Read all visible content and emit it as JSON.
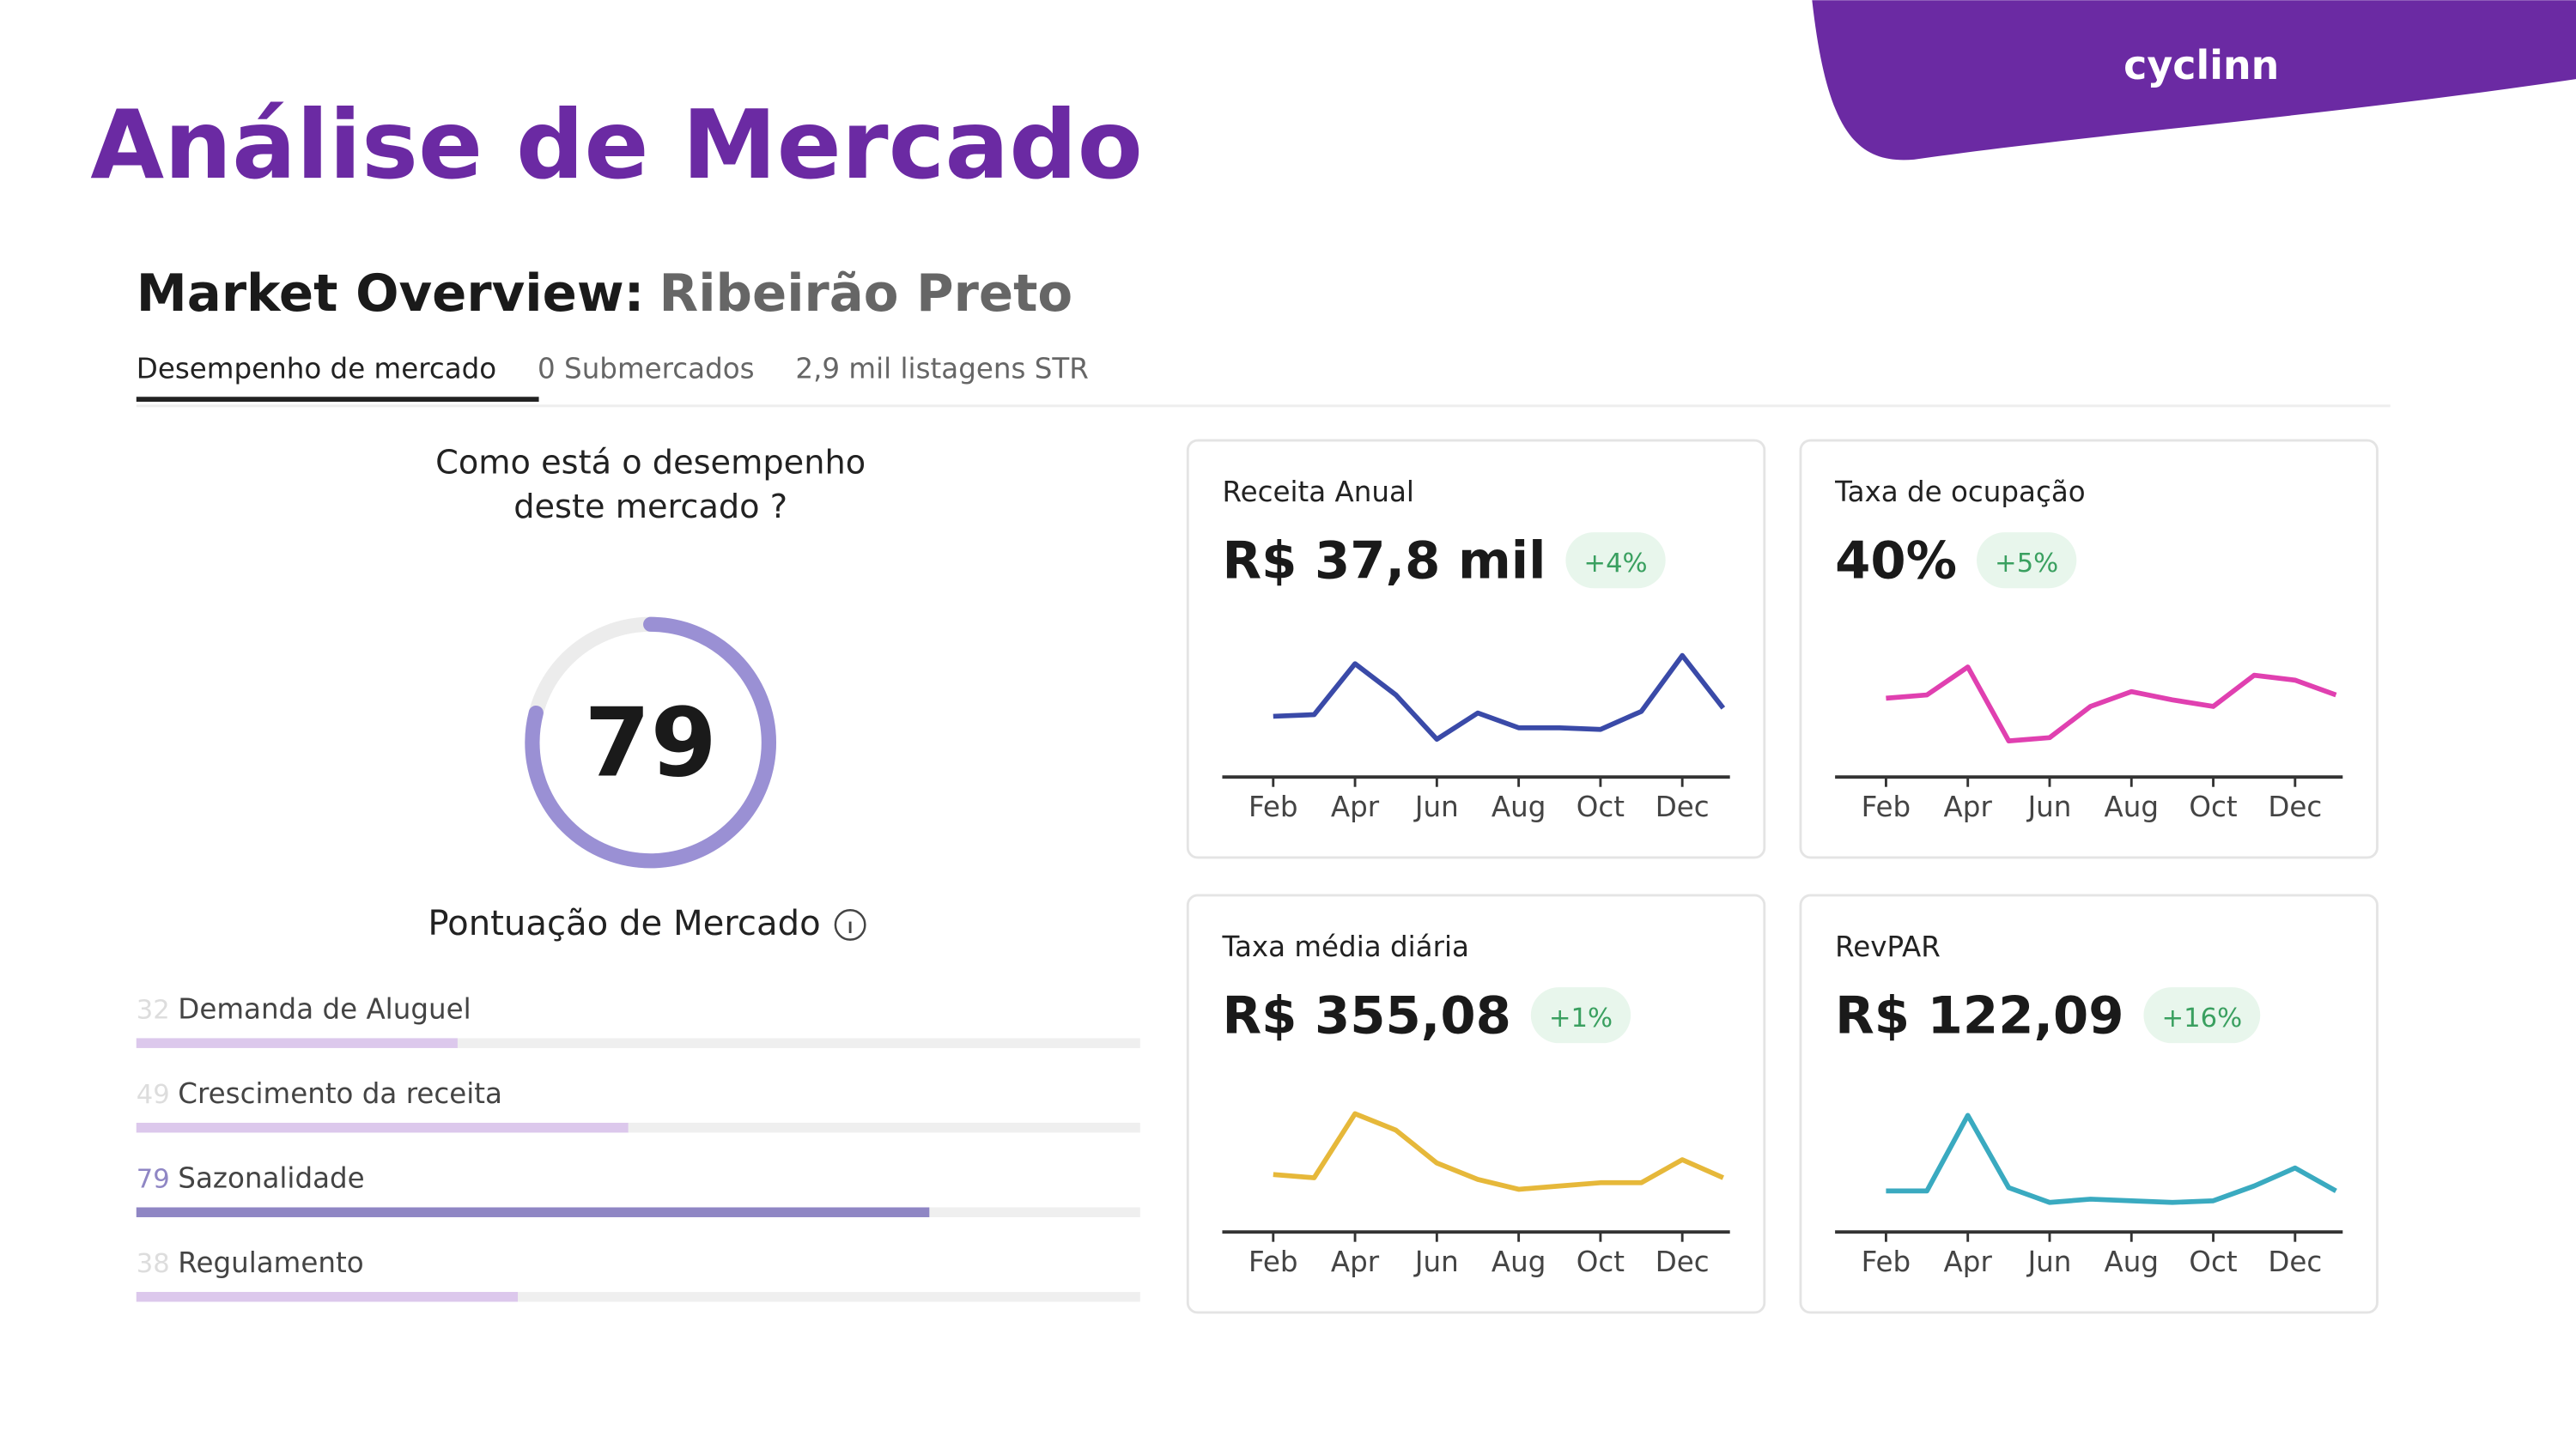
{
  "header": {
    "title": "Análise de Mercado",
    "logo": "cyclinn"
  },
  "overview": {
    "label": "Market Overview:",
    "city": "Ribeirão Preto",
    "tabs": [
      "Desempenho de mercado",
      "0 Submercados",
      "2,9 mil listagens STR"
    ]
  },
  "score": {
    "question": "Como está o desempenho deste mercado ?",
    "value": 79,
    "label": "Pontuação de Mercado",
    "color": "#9a90d4",
    "factors": [
      {
        "value": 32,
        "label": "Demanda de Aluguel",
        "color": "#dcc8ec"
      },
      {
        "value": 49,
        "label": "Crescimento da receita",
        "color": "#dcc8ec"
      },
      {
        "value": 79,
        "label": "Sazonalidade",
        "color": "#8f86c4"
      },
      {
        "value": 38,
        "label": "Regulamento",
        "color": "#dcc8ec"
      }
    ]
  },
  "cards": [
    {
      "title": "Receita Anual",
      "value": "R$ 37,8 mil",
      "change": "+4%",
      "color": "#3a4aa8",
      "categories": [
        "Feb",
        null,
        "Apr",
        null,
        "Jun",
        null,
        "Aug",
        null,
        "Oct",
        null,
        "Dec",
        null
      ],
      "values": [
        37,
        38,
        69,
        50,
        23,
        39,
        30,
        30,
        29,
        40,
        74,
        42
      ]
    },
    {
      "title": "Taxa de ocupação",
      "value": "40%",
      "change": "+5%",
      "color": "#e040b0",
      "categories": [
        "Feb",
        null,
        "Apr",
        null,
        "Jun",
        null,
        "Aug",
        null,
        "Oct",
        null,
        "Dec",
        null
      ],
      "values": [
        48,
        50,
        67,
        22,
        24,
        43,
        52,
        47,
        43,
        62,
        59,
        50
      ]
    },
    {
      "title": "Taxa média diária",
      "value": "R$ 355,08",
      "change": "+1%",
      "color": "#e6b83a",
      "categories": [
        "Feb",
        null,
        "Apr",
        null,
        "Jun",
        null,
        "Aug",
        null,
        "Oct",
        null,
        "Dec",
        null
      ],
      "values": [
        35,
        33,
        72,
        62,
        42,
        32,
        26,
        28,
        30,
        30,
        44,
        33
      ]
    },
    {
      "title": "RevPAR",
      "value": "R$ 122,09",
      "change": "+16%",
      "color": "#3aaac0",
      "categories": [
        "Feb",
        null,
        "Apr",
        null,
        "Jun",
        null,
        "Aug",
        null,
        "Oct",
        null,
        "Dec",
        null
      ],
      "values": [
        25,
        25,
        71,
        27,
        18,
        20,
        19,
        18,
        19,
        28,
        39,
        25
      ]
    }
  ]
}
